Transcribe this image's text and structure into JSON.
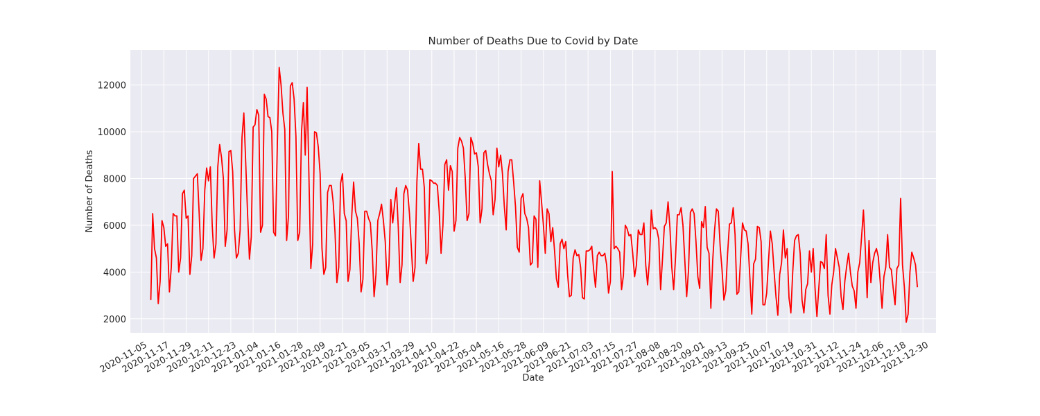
{
  "chart_data": {
    "type": "line",
    "title": "Number of Deaths Due to Covid by Date",
    "xlabel": "Date",
    "ylabel": "Number of Deaths",
    "ylim": [
      1400,
      13500
    ],
    "xlim": [
      "2020-10-30",
      "2022-01-06"
    ],
    "grid": true,
    "legend": "none",
    "series_color": "#ff0000",
    "background_color": "#eaeaf2",
    "x_start": "2020-11-10",
    "x_ticks": [
      "2020-11-05",
      "2020-11-17",
      "2020-11-29",
      "2020-12-11",
      "2020-12-23",
      "2021-01-04",
      "2021-01-16",
      "2021-01-28",
      "2021-02-09",
      "2021-02-21",
      "2021-03-05",
      "2021-03-17",
      "2021-03-29",
      "2021-04-10",
      "2021-04-22",
      "2021-05-04",
      "2021-05-16",
      "2021-05-28",
      "2021-06-09",
      "2021-06-21",
      "2021-07-03",
      "2021-07-15",
      "2021-07-27",
      "2021-08-08",
      "2021-08-20",
      "2021-09-01",
      "2021-09-13",
      "2021-09-25",
      "2021-10-07",
      "2021-10-19",
      "2021-10-31",
      "2021-11-12",
      "2021-11-24",
      "2021-12-06",
      "2021-12-18",
      "2021-12-30"
    ],
    "y_ticks": [
      2000,
      4000,
      6000,
      8000,
      10000,
      12000
    ],
    "series": [
      {
        "name": "",
        "values": [
          2800,
          6500,
          5000,
          4600,
          2650,
          3600,
          6200,
          5900,
          5100,
          5200,
          3150,
          4200,
          6500,
          6400,
          6400,
          4000,
          4600,
          7350,
          7500,
          6300,
          6400,
          3900,
          4700,
          8000,
          8100,
          8200,
          6500,
          4500,
          5000,
          7500,
          8450,
          7900,
          8500,
          6000,
          4600,
          5200,
          8500,
          9450,
          8900,
          8000,
          5100,
          5800,
          9150,
          9200,
          8300,
          5800,
          4600,
          4800,
          5800,
          9750,
          10800,
          8700,
          6500,
          4550,
          5500,
          10200,
          10300,
          10950,
          10700,
          5700,
          6000,
          11600,
          11400,
          10650,
          10600,
          10000,
          5700,
          5550,
          9450,
          12750,
          12000,
          10800,
          10100,
          5350,
          6400,
          11950,
          12100,
          11400,
          9800,
          5350,
          5700,
          10000,
          11250,
          9000,
          11900,
          8000,
          4150,
          5200,
          10000,
          9950,
          9350,
          8200,
          5000,
          3900,
          4200,
          7400,
          7700,
          7700,
          7000,
          5700,
          3550,
          4200,
          7800,
          8200,
          6500,
          6200,
          3600,
          4100,
          6400,
          7850,
          6600,
          6300,
          5200,
          3150,
          3700,
          6600,
          6600,
          6300,
          6100,
          4900,
          2950,
          3900,
          6200,
          6500,
          6900,
          6200,
          5300,
          3450,
          4300,
          7100,
          6100,
          6900,
          7600,
          5900,
          3550,
          4300,
          7350,
          7700,
          7500,
          6500,
          5100,
          3600,
          4200,
          7850,
          9500,
          8400,
          8400,
          7600,
          4350,
          4800,
          7950,
          7900,
          7800,
          7800,
          7700,
          6600,
          4800,
          6000,
          8600,
          8800,
          7500,
          8550,
          8300,
          5750,
          6200,
          9300,
          9750,
          9600,
          9300,
          8000,
          6200,
          6500,
          9750,
          9500,
          9050,
          9100,
          8500,
          6100,
          6700,
          9100,
          9200,
          8600,
          8200,
          7900,
          6450,
          7100,
          9300,
          8500,
          9000,
          8200,
          6800,
          5800,
          8300,
          8800,
          8800,
          7850,
          6800,
          5050,
          4850,
          7150,
          7350,
          6500,
          6300,
          5900,
          4300,
          4400,
          6400,
          6250,
          4200,
          7900,
          7000,
          6000,
          4800,
          6700,
          6500,
          5300,
          5900,
          4900,
          3700,
          3350,
          5200,
          5400,
          5000,
          5300,
          3900,
          2950,
          3000,
          4600,
          4950,
          4700,
          4750,
          4200,
          2900,
          2850,
          4900,
          4900,
          4950,
          5100,
          4100,
          3350,
          4700,
          4850,
          4700,
          4700,
          4800,
          4300,
          3100,
          3600,
          8300,
          5000,
          5100,
          5000,
          4850,
          3250,
          3850,
          6000,
          5850,
          5550,
          5600,
          4800,
          3800,
          4300,
          5800,
          5600,
          5600,
          6100,
          4300,
          3450,
          4500,
          6650,
          5850,
          5900,
          5800,
          5400,
          3250,
          4550,
          5950,
          6100,
          7000,
          5900,
          4200,
          3250,
          4600,
          6450,
          6450,
          6750,
          6000,
          4500,
          2950,
          4100,
          6550,
          6700,
          6500,
          5300,
          3800,
          3300,
          6150,
          5900,
          6800,
          5050,
          4800,
          2450,
          4500,
          5800,
          6700,
          6600,
          5100,
          4100,
          2800,
          3200,
          4800,
          6050,
          6100,
          6750,
          5600,
          3050,
          3150,
          4600,
          6100,
          5800,
          5750,
          5200,
          3700,
          2200,
          4350,
          4550,
          5950,
          5900,
          5300,
          2600,
          2600,
          3100,
          4500,
          5750,
          5200,
          4000,
          2950,
          2150,
          3900,
          4400,
          5800,
          4600,
          5000,
          2900,
          2250,
          4000,
          5350,
          5550,
          5600,
          4800,
          2800,
          2250,
          3250,
          3500,
          4900,
          4000,
          5000,
          3300,
          2100,
          3300,
          4450,
          4400,
          4150,
          5600,
          3000,
          2200,
          3450,
          4000,
          5000,
          4600,
          4200,
          2950,
          2400,
          3600,
          4250,
          4800,
          4000,
          3400,
          3200,
          2450,
          4000,
          4400,
          5500,
          6650,
          5000,
          2900,
          5350,
          3550,
          4400,
          4800,
          5000,
          4650,
          3600,
          2450,
          3800,
          4200,
          5600,
          4200,
          4100,
          3300,
          2600,
          4150,
          4300,
          7150,
          4300,
          3350,
          1850,
          2200,
          4000,
          4850,
          4600,
          4300,
          3350
        ]
      }
    ]
  }
}
